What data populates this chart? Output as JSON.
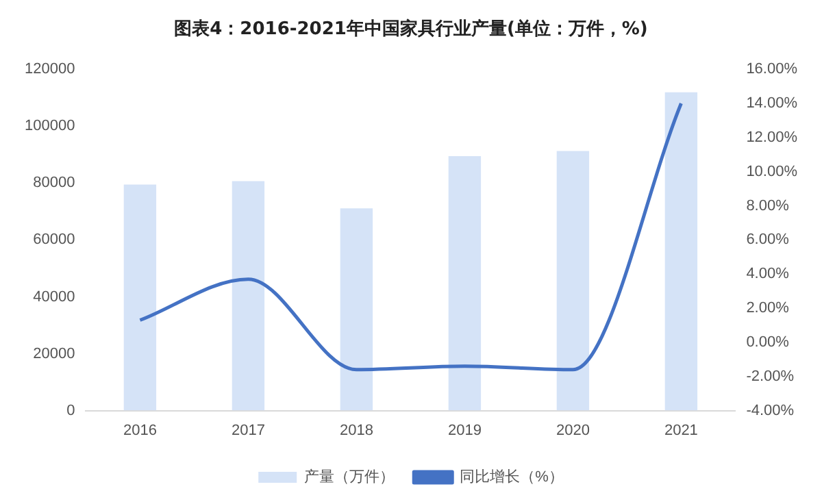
{
  "chart_data": {
    "type": "bar",
    "title": "图表4：2016-2021年中国家具行业产量(单位：万件，%)",
    "categories": [
      "2016",
      "2017",
      "2018",
      "2019",
      "2020",
      "2021"
    ],
    "series": [
      {
        "name": "产量（万件）",
        "color": "#d5e3f7",
        "values": [
          79500,
          80700,
          71100,
          89500,
          91300,
          111900
        ]
      },
      {
        "name": "同比增长（%）",
        "type": "line",
        "axis": "y2",
        "color": "#4472c4",
        "values": [
          1.3,
          3.7,
          -1.6,
          -1.4,
          -1.6,
          14.0
        ]
      }
    ],
    "ylim": [
      0,
      120000
    ],
    "yticks": [
      0,
      20000,
      40000,
      60000,
      80000,
      100000,
      120000
    ],
    "y2lim": [
      -4,
      16
    ],
    "y2ticks": [
      {
        "value": -4,
        "label": "-4.00%"
      },
      {
        "value": -2,
        "label": "-2.00%"
      },
      {
        "value": 0,
        "label": "0.00%"
      },
      {
        "value": 2,
        "label": "2.00%"
      },
      {
        "value": 4,
        "label": "4.00%"
      },
      {
        "value": 6,
        "label": "6.00%"
      },
      {
        "value": 8,
        "label": "8.00%"
      },
      {
        "value": 10,
        "label": "10.00%"
      },
      {
        "value": 12,
        "label": "12.00%"
      },
      {
        "value": 14,
        "label": "14.00%"
      },
      {
        "value": 16,
        "label": "16.00%"
      }
    ],
    "grid": false,
    "legend": "bottom",
    "marker": "none"
  }
}
